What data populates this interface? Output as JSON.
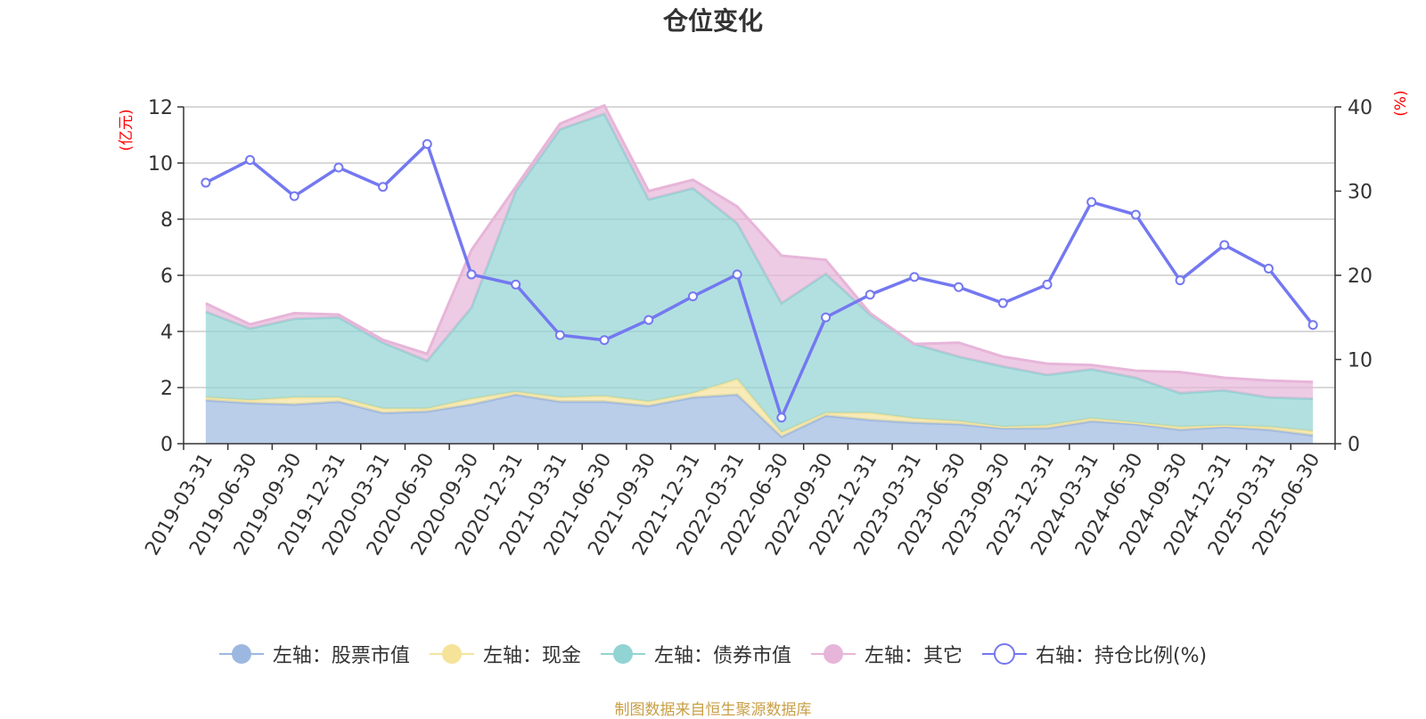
{
  "chart_data": {
    "type": "area",
    "title": "仓位变化",
    "source": "制图数据来自恒生聚源数据库",
    "left_axis": {
      "unit": "(亿元)",
      "min": 0,
      "max": 12,
      "ticks": [
        0,
        2,
        4,
        6,
        8,
        10,
        12
      ]
    },
    "right_axis": {
      "unit": "(%)",
      "min": 0,
      "max": 40,
      "ticks": [
        0,
        10,
        20,
        30,
        40
      ]
    },
    "grid": true,
    "legend_position": "bottom",
    "categories": [
      "2019-03-31",
      "2019-06-30",
      "2019-09-30",
      "2019-12-31",
      "2020-03-31",
      "2020-06-30",
      "2020-09-30",
      "2020-12-31",
      "2021-03-31",
      "2021-06-30",
      "2021-09-30",
      "2021-12-31",
      "2022-03-31",
      "2022-06-30",
      "2022-09-30",
      "2022-12-31",
      "2023-03-31",
      "2023-06-30",
      "2023-09-30",
      "2023-12-31",
      "2024-03-31",
      "2024-06-30",
      "2024-09-30",
      "2024-12-31",
      "2025-03-31",
      "2025-06-30"
    ],
    "series": [
      {
        "name": "左轴：股票市值",
        "axis": "left",
        "type": "area",
        "color": "#9db8e0",
        "values": [
          1.55,
          1.45,
          1.4,
          1.5,
          1.1,
          1.15,
          1.4,
          1.75,
          1.5,
          1.5,
          1.35,
          1.65,
          1.75,
          0.25,
          1.0,
          0.85,
          0.75,
          0.7,
          0.55,
          0.55,
          0.8,
          0.7,
          0.5,
          0.6,
          0.5,
          0.3
        ]
      },
      {
        "name": "左轴：现金",
        "axis": "left",
        "type": "area",
        "color": "#f5e39a",
        "values": [
          0.1,
          0.1,
          0.25,
          0.15,
          0.15,
          0.1,
          0.2,
          0.1,
          0.15,
          0.2,
          0.15,
          0.15,
          0.55,
          0.15,
          0.1,
          0.25,
          0.15,
          0.1,
          0.05,
          0.1,
          0.1,
          0.05,
          0.1,
          0.05,
          0.1,
          0.15
        ]
      },
      {
        "name": "左轴：债券市值",
        "axis": "left",
        "type": "area",
        "color": "#92d3d3",
        "values": [
          3.05,
          2.55,
          2.8,
          2.85,
          2.35,
          1.7,
          3.25,
          7.15,
          9.55,
          10.05,
          7.2,
          7.3,
          5.55,
          4.6,
          4.95,
          3.5,
          2.65,
          2.3,
          2.15,
          1.8,
          1.75,
          1.6,
          1.2,
          1.25,
          1.05,
          1.15
        ]
      },
      {
        "name": "左轴：其它",
        "axis": "left",
        "type": "area",
        "color": "#e7b5d9",
        "values": [
          0.3,
          0.15,
          0.2,
          0.1,
          0.1,
          0.25,
          2.05,
          0.15,
          0.2,
          0.3,
          0.3,
          0.3,
          0.6,
          1.7,
          0.5,
          0.05,
          0.0,
          0.5,
          0.35,
          0.4,
          0.15,
          0.25,
          0.75,
          0.45,
          0.6,
          0.6
        ]
      },
      {
        "name": "右轴：持仓比例(%)",
        "axis": "right",
        "type": "line",
        "color": "#7478f0",
        "values": [
          31.0,
          33.7,
          29.4,
          32.8,
          30.5,
          35.6,
          20.1,
          18.9,
          12.9,
          12.3,
          14.7,
          17.5,
          20.1,
          3.1,
          15.0,
          17.7,
          19.8,
          18.6,
          16.7,
          18.9,
          28.7,
          27.2,
          19.4,
          23.6,
          20.8,
          14.1
        ]
      }
    ]
  }
}
